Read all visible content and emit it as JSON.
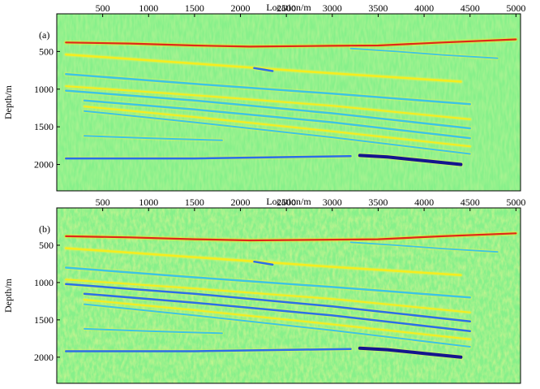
{
  "figure": {
    "colors": {
      "background": "#86f08a",
      "light_yellow": "#d8f25a",
      "yellow": "#f6ec1e",
      "cyan": "#3cc4e4",
      "blue": "#2a6fe8",
      "dark_blue": "#14148e",
      "red": "#e02818"
    }
  },
  "chart_data": [
    {
      "type": "heatmap",
      "panel_label": "(a)",
      "xlabel": "Location/m",
      "ylabel": "Depth/m",
      "xlim": [
        0,
        5050
      ],
      "ylim": [
        2350,
        0
      ],
      "x_ticks": [
        500,
        1000,
        1500,
        2000,
        2500,
        3000,
        3500,
        4000,
        4500,
        5000
      ],
      "y_ticks": [
        500,
        1000,
        1500,
        2000
      ],
      "noise": "low",
      "reflectors": [
        {
          "points": [
            [
              100,
              380
            ],
            [
              800,
              395
            ],
            [
              1500,
              420
            ],
            [
              2100,
              435
            ],
            [
              3000,
              425
            ],
            [
              3500,
              420
            ],
            [
              4200,
              380
            ],
            [
              5000,
              340
            ]
          ],
          "color": "red",
          "width": 2.2
        },
        {
          "points": [
            [
              100,
              540
            ],
            [
              1500,
              660
            ],
            [
              3000,
              790
            ],
            [
              4400,
              900
            ]
          ],
          "color": "yellow",
          "width": 2.5
        },
        {
          "points": [
            [
              100,
              800
            ],
            [
              1500,
              930
            ],
            [
              3000,
              1060
            ],
            [
              4500,
              1200
            ]
          ],
          "color": "cyan",
          "width": 2.5
        },
        {
          "points": [
            [
              100,
              960
            ],
            [
              1500,
              1080
            ],
            [
              3000,
              1220
            ],
            [
              4500,
              1400
            ]
          ],
          "color": "yellow",
          "width": 2
        },
        {
          "points": [
            [
              100,
              1020
            ],
            [
              1500,
              1150
            ],
            [
              3000,
              1320
            ],
            [
              4500,
              1520
            ]
          ],
          "color": "cyan",
          "width": 2.5
        },
        {
          "points": [
            [
              300,
              1150
            ],
            [
              1500,
              1270
            ],
            [
              3000,
              1440
            ],
            [
              4500,
              1650
            ]
          ],
          "color": "cyan",
          "width": 2.5
        },
        {
          "points": [
            [
              300,
              1230
            ],
            [
              1500,
              1370
            ],
            [
              3000,
              1560
            ],
            [
              4500,
              1760
            ]
          ],
          "color": "yellow",
          "width": 2
        },
        {
          "points": [
            [
              300,
              1290
            ],
            [
              1500,
              1440
            ],
            [
              3000,
              1640
            ],
            [
              4500,
              1860
            ]
          ],
          "color": "cyan",
          "width": 2
        },
        {
          "points": [
            [
              300,
              1620
            ],
            [
              1000,
              1650
            ],
            [
              1800,
              1680
            ]
          ],
          "color": "cyan",
          "width": 2
        },
        {
          "points": [
            [
              100,
              1920
            ],
            [
              1500,
              1920
            ],
            [
              3200,
              1890
            ]
          ],
          "color": "blue",
          "width": 2.5
        },
        {
          "points": [
            [
              3300,
              1880
            ],
            [
              3600,
              1900
            ],
            [
              4000,
              1950
            ],
            [
              4400,
              2000
            ]
          ],
          "color": "dark_blue",
          "width": 4
        },
        {
          "points": [
            [
              2150,
              720
            ],
            [
              2250,
              740
            ],
            [
              2350,
              760
            ]
          ],
          "color": "blue",
          "width": 2.5
        },
        {
          "points": [
            [
              3200,
              460
            ],
            [
              3700,
              500
            ],
            [
              4200,
              545
            ],
            [
              4800,
              590
            ]
          ],
          "color": "cyan",
          "width": 1.8
        }
      ]
    },
    {
      "type": "heatmap",
      "panel_label": "(b)",
      "xlabel": "Location/m",
      "ylabel": "Depth/m",
      "xlim": [
        0,
        5050
      ],
      "ylim": [
        2350,
        0
      ],
      "x_ticks": [
        500,
        1000,
        1500,
        2000,
        2500,
        3000,
        3500,
        4000,
        4500,
        5000
      ],
      "y_ticks": [
        500,
        1000,
        1500,
        2000
      ],
      "noise": "high",
      "reflectors": [
        {
          "points": [
            [
              100,
              380
            ],
            [
              800,
              395
            ],
            [
              1500,
              420
            ],
            [
              2100,
              435
            ],
            [
              3000,
              425
            ],
            [
              3500,
              420
            ],
            [
              4200,
              380
            ],
            [
              5000,
              340
            ]
          ],
          "color": "red",
          "width": 2.2
        },
        {
          "points": [
            [
              100,
              540
            ],
            [
              1500,
              660
            ],
            [
              3000,
              790
            ],
            [
              4400,
              900
            ]
          ],
          "color": "yellow",
          "width": 2.5
        },
        {
          "points": [
            [
              100,
              800
            ],
            [
              1500,
              930
            ],
            [
              3000,
              1060
            ],
            [
              4500,
              1200
            ]
          ],
          "color": "cyan",
          "width": 2.5
        },
        {
          "points": [
            [
              100,
              960
            ],
            [
              1500,
              1080
            ],
            [
              3000,
              1220
            ],
            [
              4500,
              1400
            ]
          ],
          "color": "yellow",
          "width": 2
        },
        {
          "points": [
            [
              100,
              1020
            ],
            [
              1500,
              1150
            ],
            [
              3000,
              1320
            ],
            [
              4500,
              1520
            ]
          ],
          "color": "blue",
          "width": 2.5
        },
        {
          "points": [
            [
              300,
              1150
            ],
            [
              1500,
              1270
            ],
            [
              3000,
              1440
            ],
            [
              4500,
              1650
            ]
          ],
          "color": "blue",
          "width": 2.5
        },
        {
          "points": [
            [
              300,
              1230
            ],
            [
              1500,
              1370
            ],
            [
              3000,
              1560
            ],
            [
              4500,
              1760
            ]
          ],
          "color": "yellow",
          "width": 2
        },
        {
          "points": [
            [
              300,
              1290
            ],
            [
              1500,
              1440
            ],
            [
              3000,
              1640
            ],
            [
              4500,
              1860
            ]
          ],
          "color": "cyan",
          "width": 2
        },
        {
          "points": [
            [
              300,
              1620
            ],
            [
              1000,
              1650
            ],
            [
              1800,
              1680
            ]
          ],
          "color": "cyan",
          "width": 2
        },
        {
          "points": [
            [
              100,
              1920
            ],
            [
              1500,
              1920
            ],
            [
              3200,
              1890
            ]
          ],
          "color": "blue",
          "width": 2.5
        },
        {
          "points": [
            [
              3300,
              1880
            ],
            [
              3600,
              1900
            ],
            [
              4000,
              1950
            ],
            [
              4400,
              2000
            ]
          ],
          "color": "dark_blue",
          "width": 4
        },
        {
          "points": [
            [
              2150,
              720
            ],
            [
              2250,
              740
            ],
            [
              2350,
              760
            ]
          ],
          "color": "blue",
          "width": 2.5
        },
        {
          "points": [
            [
              3200,
              460
            ],
            [
              3700,
              500
            ],
            [
              4200,
              545
            ],
            [
              4800,
              590
            ]
          ],
          "color": "cyan",
          "width": 1.8
        }
      ]
    }
  ]
}
